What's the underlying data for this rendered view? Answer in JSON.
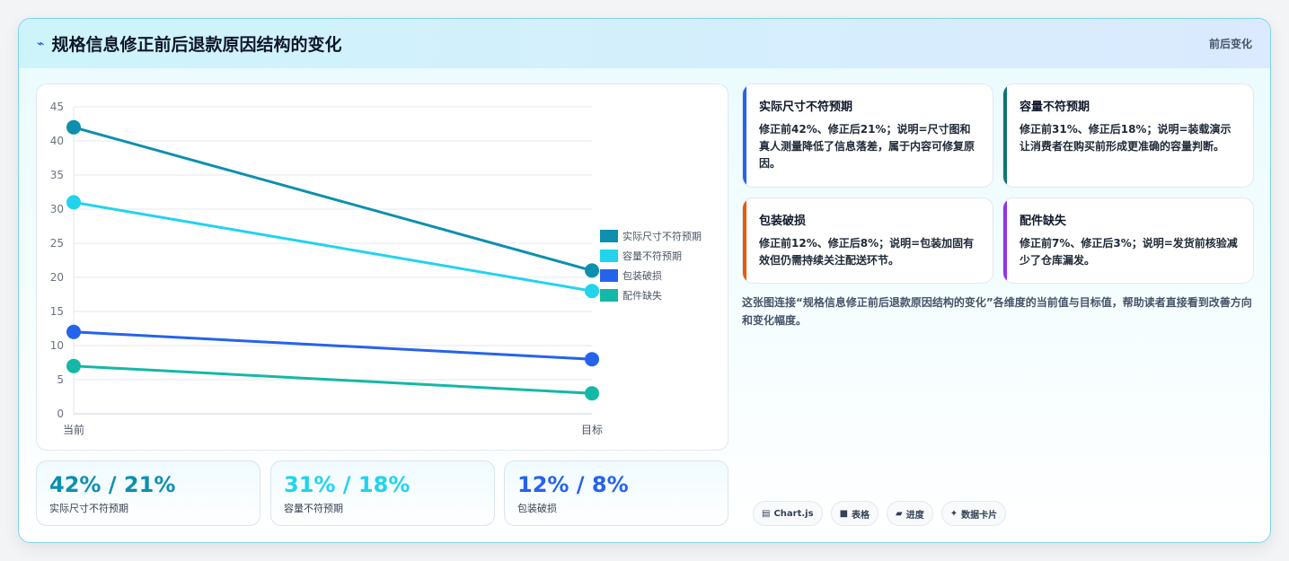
{
  "header": {
    "logo_icon": "⌁",
    "title": "规格信息修正前后退款原因结构的变化",
    "tag": "前后变化"
  },
  "chart_data": {
    "type": "line",
    "categories": [
      "当前",
      "目标"
    ],
    "ylim": [
      0,
      45
    ],
    "yticks": [
      0,
      5,
      10,
      15,
      20,
      25,
      30,
      35,
      40,
      45
    ],
    "grid": true,
    "legend_position": "right",
    "series": [
      {
        "name": "实际尺寸不符预期",
        "values": [
          42,
          21
        ],
        "color": "#0e8fae"
      },
      {
        "name": "容量不符预期",
        "values": [
          31,
          18
        ],
        "color": "#22d3ee"
      },
      {
        "name": "包装破损",
        "values": [
          12,
          8
        ],
        "color": "#2563eb"
      },
      {
        "name": "配件缺失",
        "values": [
          7,
          3
        ],
        "color": "#14b8a6"
      }
    ]
  },
  "stats": [
    {
      "value": "42% / 21%",
      "label": "实际尺寸不符预期",
      "color": "#0e8fae"
    },
    {
      "value": "31% / 18%",
      "label": "容量不符预期",
      "color": "#22d3ee"
    },
    {
      "value": "12% / 8%",
      "label": "包装破损",
      "color": "#2563eb"
    }
  ],
  "cards": [
    {
      "title": "实际尺寸不符预期",
      "body": "修正前42%、修正后21%；说明=尺寸图和真人测量降低了信息落差，属于内容可修复原因。",
      "accent": "#2563eb"
    },
    {
      "title": "容量不符预期",
      "body": "修正前31%、修正后18%；说明=装载演示让消费者在购买前形成更准确的容量判断。",
      "accent": "#0f766e"
    },
    {
      "title": "包装破损",
      "body": "修正前12%、修正后8%；说明=包装加固有效但仍需持续关注配送环节。",
      "accent": "#ea580c"
    },
    {
      "title": "配件缺失",
      "body": "修正前7%、修正后3%；说明=发货前核验减少了仓库漏发。",
      "accent": "#9333ea"
    }
  ],
  "note": "这张图连接“规格信息修正前后退款原因结构的变化”各维度的当前值与目标值，帮助读者直接看到改善方向和变化幅度。",
  "pills": [
    {
      "icon": "▤",
      "label": "Chart.js"
    },
    {
      "icon": "■",
      "label": "表格"
    },
    {
      "icon": "▰",
      "label": "进度"
    },
    {
      "icon": "✦",
      "label": "数据卡片"
    }
  ]
}
